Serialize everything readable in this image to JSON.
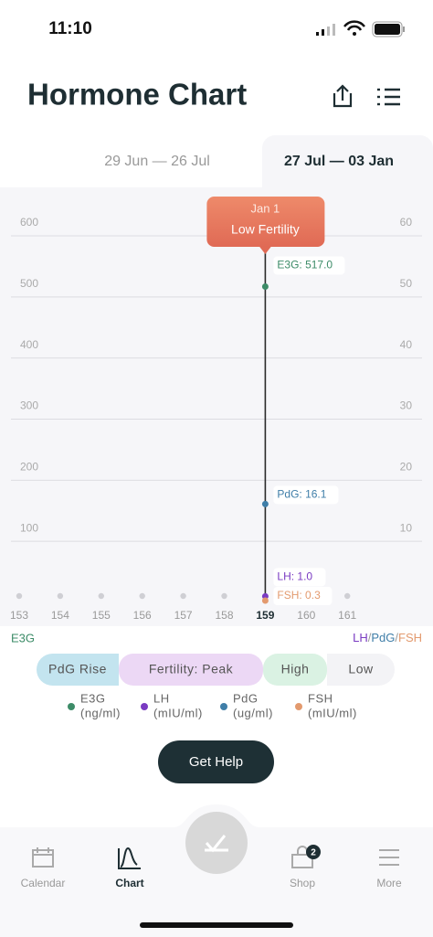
{
  "status_bar": {
    "time": "11:10"
  },
  "header": {
    "title": "Hormone Chart"
  },
  "tabs": [
    {
      "label": "29 Jun — 26 Jul",
      "selected": false
    },
    {
      "label": "27 Jul — 03 Jan",
      "selected": true
    }
  ],
  "chart_data": {
    "type": "line",
    "categories": [
      "153",
      "154",
      "155",
      "156",
      "157",
      "158",
      "159",
      "160",
      "161"
    ],
    "ylim": [
      0,
      600
    ],
    "yticks": [
      100,
      200,
      300,
      400,
      500,
      600
    ],
    "y2lim": [
      0,
      60
    ],
    "y2ticks": [
      10,
      20,
      30,
      40,
      50,
      60
    ],
    "grid": true,
    "y_label": "E3G",
    "y2_label_parts": [
      "LH",
      "/",
      "PdG",
      "/",
      "FSH"
    ],
    "tooltip": {
      "date": "Jan 1",
      "label": "Low Fertility"
    },
    "series": [
      {
        "name": "E3G",
        "unit": "(ng/ml)",
        "color": "#3d8c68",
        "axis": "y",
        "values": [
          null,
          null,
          null,
          null,
          null,
          null,
          517.0,
          null,
          null
        ],
        "value_labels": [
          null,
          null,
          null,
          null,
          null,
          null,
          "E3G: 517.0",
          null,
          null
        ]
      },
      {
        "name": "LH",
        "unit": "(mIU/ml)",
        "color": "#7a3bc2",
        "axis": "y2",
        "values": [
          null,
          null,
          null,
          null,
          null,
          null,
          1.0,
          null,
          null
        ],
        "value_labels": [
          null,
          null,
          null,
          null,
          null,
          null,
          "LH: 1.0",
          null,
          null
        ]
      },
      {
        "name": "PdG",
        "unit": "(ug/ml)",
        "color": "#3f7ea8",
        "axis": "y2",
        "values": [
          null,
          null,
          null,
          null,
          null,
          null,
          16.1,
          null,
          null
        ],
        "value_labels": [
          null,
          null,
          null,
          null,
          null,
          null,
          "PdG: 16.1",
          null,
          null
        ]
      },
      {
        "name": "FSH",
        "unit": "(mIU/ml)",
        "color": "#e39a6e",
        "axis": "y2",
        "values": [
          null,
          null,
          null,
          null,
          null,
          null,
          0.3,
          null,
          null
        ],
        "value_labels": [
          null,
          null,
          null,
          null,
          null,
          null,
          "FSH: 0.3",
          null,
          null
        ]
      }
    ]
  },
  "phases": [
    {
      "label": "PdG Rise",
      "color": "#c3e4ef"
    },
    {
      "label": "Fertility: Peak",
      "color": "#ecd8f5"
    },
    {
      "label": "High",
      "color": "#daf2e3"
    },
    {
      "label": "Low",
      "color": "#f3f3f6"
    }
  ],
  "button": "Get Help",
  "nav": [
    {
      "label": "Calendar",
      "active": false
    },
    {
      "label": "Chart",
      "active": true
    },
    {
      "label": "Shop",
      "active": false,
      "badge": 2
    },
    {
      "label": "More",
      "active": false
    }
  ]
}
